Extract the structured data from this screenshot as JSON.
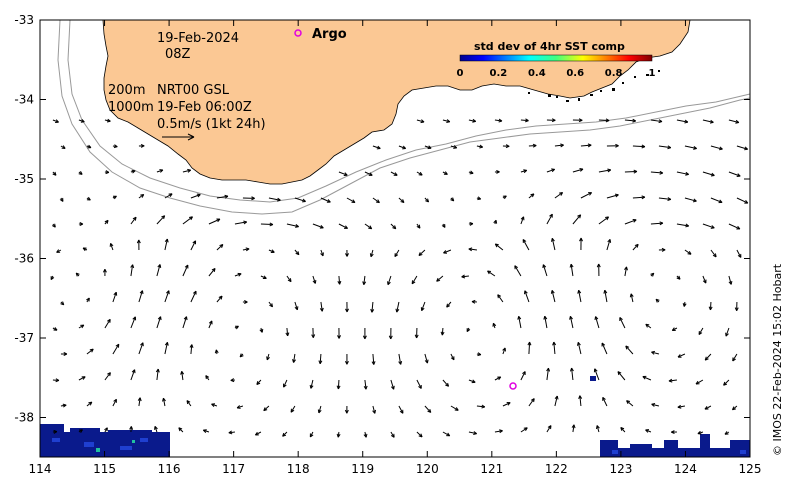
{
  "map": {
    "date": "19-Feb-2024",
    "hour": "08Z",
    "depth_line_1": "200m",
    "depth_line_2": "1000m",
    "product": "NRT00 GSL",
    "product_time": "19-Feb 06:00Z",
    "scale_label": "0.5m/s (1kt 24h)",
    "argo_label": "Argo",
    "credit": "© IMOS 22-Feb-2024 15:02 Hobart",
    "colorbar": {
      "title": "std dev of 4hr SST comp",
      "ticks": [
        "0",
        "0.2",
        "0.4",
        "0.6",
        "0.8",
        "1"
      ]
    },
    "x_ticks": [
      "114",
      "115",
      "116",
      "117",
      "118",
      "119",
      "120",
      "121",
      "122",
      "123",
      "124",
      "125"
    ],
    "y_ticks": [
      "-33",
      "-34",
      "-35",
      "-36",
      "-37",
      "-38"
    ],
    "colors": {
      "land": "#fbc894",
      "argo_marker": "#e000e0",
      "sst_dark": "#0a1a8c",
      "sst_mid": "#1f3fd0"
    }
  }
}
